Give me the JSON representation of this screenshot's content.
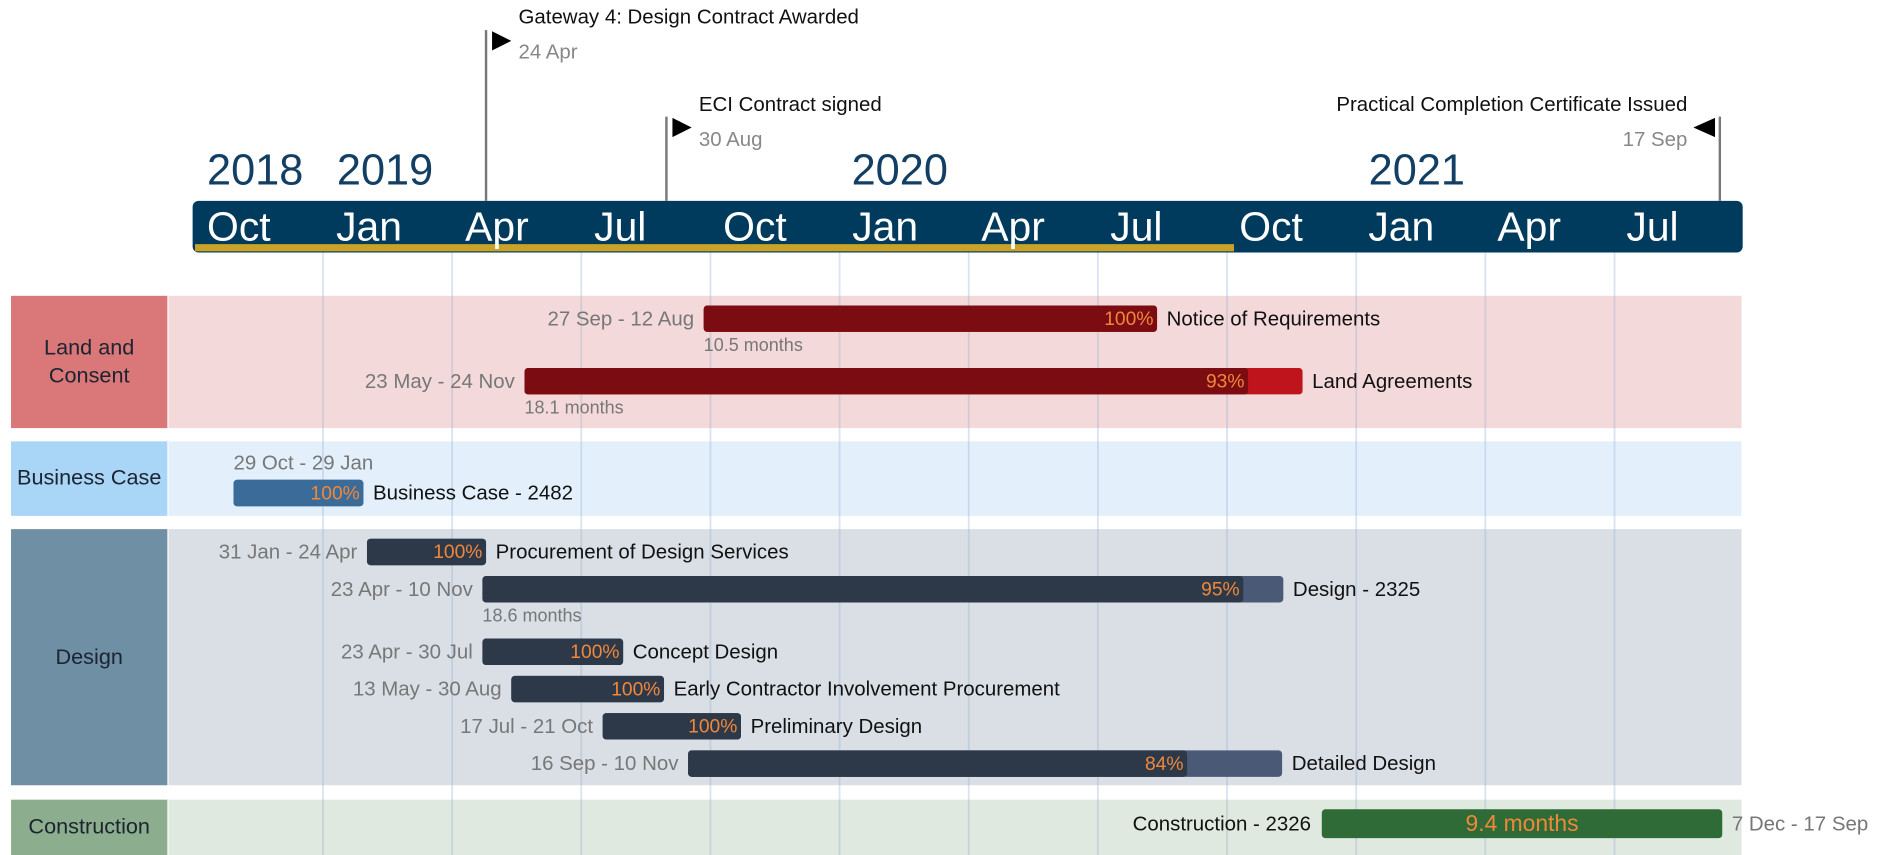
{
  "timeline": {
    "years": [
      "2018",
      "2019",
      "2020",
      "2021"
    ],
    "months": [
      "Oct",
      "Jan",
      "Apr",
      "Jul",
      "Oct",
      "Jan",
      "Apr",
      "Jul",
      "Oct",
      "Jan",
      "Apr",
      "Jul"
    ]
  },
  "milestones": [
    {
      "label": "Gateway 4: Design Contract Awarded",
      "date": "24 Apr"
    },
    {
      "label": "ECI Contract signed",
      "date": "30 Aug"
    },
    {
      "label": "Practical Completion Certificate Issued",
      "date": "17 Sep"
    }
  ],
  "lanes": [
    {
      "label": "Land and Consent",
      "tasks": [
        {
          "name": "Notice of Requirements",
          "dates": "27 Sep - 12 Aug",
          "duration": "10.5 months",
          "progress": {
            "value": 100,
            "label": "100%"
          }
        },
        {
          "name": "Land Agreements",
          "dates": "23 May - 24 Nov",
          "duration": "18.1 months",
          "progress": {
            "value": 93,
            "label": "93%"
          }
        }
      ]
    },
    {
      "label": "Business Case",
      "tasks": [
        {
          "name": "Business Case - 2482",
          "dates": "29 Oct - 29 Jan",
          "progress": {
            "value": 100,
            "label": "100%"
          }
        }
      ]
    },
    {
      "label": "Design",
      "tasks": [
        {
          "name": "Procurement of Design Services",
          "dates": "31 Jan - 24 Apr",
          "progress": {
            "value": 100,
            "label": "100%"
          }
        },
        {
          "name": "Design - 2325",
          "dates": "23 Apr - 10 Nov",
          "duration": "18.6 months",
          "progress": {
            "value": 95,
            "label": "95%"
          }
        },
        {
          "name": "Concept Design",
          "dates": "23 Apr - 30 Jul",
          "progress": {
            "value": 100,
            "label": "100%"
          }
        },
        {
          "name": "Early Contractor Involvement Procurement",
          "dates": "13 May - 30 Aug",
          "progress": {
            "value": 100,
            "label": "100%"
          }
        },
        {
          "name": "Preliminary Design",
          "dates": "17 Jul - 21 Oct",
          "progress": {
            "value": 100,
            "label": "100%"
          }
        },
        {
          "name": "Detailed Design",
          "dates": "16 Sep - 10 Nov",
          "progress": {
            "value": 84,
            "label": "84%"
          }
        }
      ]
    },
    {
      "label": "Construction",
      "tasks": [
        {
          "name": "Construction - 2326",
          "dates": "7 Dec - 17 Sep",
          "duration": "9.4 months"
        }
      ]
    }
  ]
}
